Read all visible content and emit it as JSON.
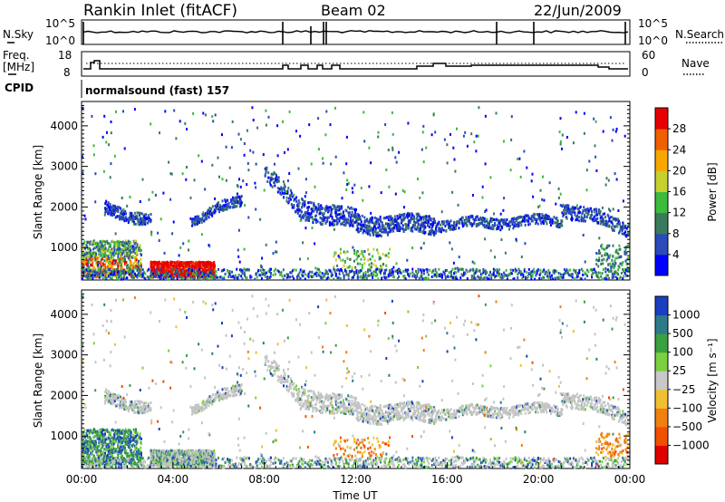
{
  "header": {
    "station": "Rankin Inlet (fitACF)",
    "beam": "Beam 02",
    "date": "22/Jun/2009"
  },
  "params": {
    "nsky_label": "N.Sky",
    "nsearch_label": "N.Search",
    "counts_top_tick": "10^5",
    "counts_bottom_tick": "10^0",
    "freq_label_line1": "Freq.",
    "freq_label_line2": "[MHz]",
    "freq_ticks": [
      "18",
      "8"
    ],
    "nave_label": "Nave",
    "nave_ticks": [
      "60",
      "0"
    ],
    "cpid_label": "CPID",
    "cpid_text": "normalsound (fast) 157"
  },
  "chart_data": [
    {
      "type": "heatmap",
      "panel": "power",
      "ylabel": "Slant Range [km]",
      "yticks": [
        "1000",
        "2000",
        "3000",
        "4000"
      ],
      "ylim": [
        200,
        4600
      ],
      "xlim": [
        0,
        24
      ],
      "colorbar_label": "Power [dB]",
      "colorbar_ticks": [
        "4",
        "8",
        "12",
        "16",
        "20",
        "24",
        "28"
      ],
      "colorbar_colors": [
        "#0000ff",
        "#2a4bb8",
        "#3a7a5c",
        "#3cbb3c",
        "#c8d030",
        "#f7a800",
        "#f06000",
        "#e80000"
      ],
      "regions": [
        {
          "t0": 0.0,
          "t1": 2.6,
          "r0": 300,
          "r1": 1200,
          "level": "mixed-high"
        },
        {
          "t0": 3.0,
          "t1": 5.8,
          "r0": 300,
          "r1": 650,
          "level": 28
        },
        {
          "t0": 1.0,
          "t1": 3.0,
          "r0": 1500,
          "r1": 2100,
          "level": 8
        },
        {
          "t0": 4.8,
          "t1": 7.0,
          "r0": 1600,
          "r1": 2300,
          "level": 8
        },
        {
          "t0": 8.0,
          "t1": 9.6,
          "r0": 1700,
          "r1": 3000,
          "level": 8
        },
        {
          "t0": 9.6,
          "t1": 15.5,
          "r0": 1200,
          "r1": 2500,
          "level": 8
        },
        {
          "t0": 15.5,
          "t1": 24.0,
          "r0": 400,
          "r1": 2100,
          "level": 8
        }
      ]
    },
    {
      "type": "heatmap",
      "panel": "velocity",
      "xlabel": "Time UT",
      "ylabel": "Slant Range [km]",
      "xticks": [
        "00:00",
        "04:00",
        "08:00",
        "12:00",
        "16:00",
        "20:00",
        "00:00"
      ],
      "yticks": [
        "1000",
        "2000",
        "3000",
        "4000"
      ],
      "ylim": [
        200,
        4600
      ],
      "xlim": [
        0,
        24
      ],
      "colorbar_label": "Velocity [m s⁻¹]",
      "colorbar_ticks": [
        "1000",
        "500",
        "100",
        "25",
        "−25",
        "−100",
        "−500",
        "−1000"
      ],
      "colorbar_colors": [
        "#1a3fc0",
        "#2e7a8a",
        "#3aa040",
        "#7ad040",
        "#c8c8c8",
        "#f0c030",
        "#f08010",
        "#f05000",
        "#e00000"
      ],
      "regions": [
        {
          "t0": 0.0,
          "t1": 2.8,
          "r0": 300,
          "r1": 1200,
          "level": "positive"
        },
        {
          "t0": 2.8,
          "t1": 6.0,
          "r0": 300,
          "r1": 700,
          "level": "ground-scatter"
        },
        {
          "t0": 5.0,
          "t1": 7.0,
          "r0": 1700,
          "r1": 2300,
          "level": "ground-scatter"
        },
        {
          "t0": 9.6,
          "t1": 15.5,
          "r0": 1200,
          "r1": 2500,
          "level": "ground-scatter"
        },
        {
          "t0": 15.5,
          "t1": 24.0,
          "r0": 1300,
          "r1": 2100,
          "level": "ground-scatter"
        },
        {
          "t0": 11.0,
          "t1": 13.5,
          "r0": 400,
          "r1": 1000,
          "level": "negative"
        },
        {
          "t0": 22.5,
          "t1": 24.0,
          "r0": 500,
          "r1": 1000,
          "level": "negative"
        }
      ]
    }
  ]
}
